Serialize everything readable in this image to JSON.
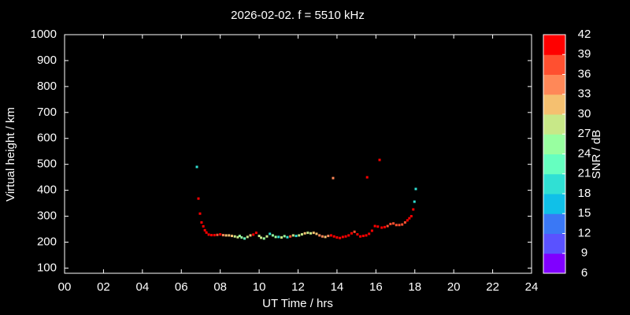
{
  "chart_data": {
    "type": "scatter",
    "title": "2026-02-02. f = 5510 kHz",
    "x_label": "UT Time / hrs",
    "y_label": "Virtual height / km",
    "xlim": [
      0,
      24
    ],
    "xticks": [
      {
        "value": 0,
        "label": "00"
      },
      {
        "value": 2,
        "label": "02"
      },
      {
        "value": 4,
        "label": "04"
      },
      {
        "value": 6,
        "label": "06"
      },
      {
        "value": 8,
        "label": "08"
      },
      {
        "value": 10,
        "label": "10"
      },
      {
        "value": 12,
        "label": "12"
      },
      {
        "value": 14,
        "label": "14"
      },
      {
        "value": 16,
        "label": "16"
      },
      {
        "value": 18,
        "label": "18"
      },
      {
        "value": 20,
        "label": "20"
      },
      {
        "value": 22,
        "label": "22"
      },
      {
        "value": 24,
        "label": "24"
      }
    ],
    "ylim": [
      80,
      1000
    ],
    "yticks": [
      100,
      200,
      300,
      400,
      500,
      600,
      700,
      800,
      900,
      1000
    ],
    "background": "#000000",
    "colorbar": {
      "label": "SNR / dB",
      "lim": [
        6,
        42
      ],
      "ticks": [
        6,
        9,
        12,
        15,
        18,
        21,
        24,
        27,
        30,
        33,
        36,
        39,
        42
      ],
      "colors": [
        "#8000ff",
        "#5a52ff",
        "#3a78f5",
        "#10c0e8",
        "#30e0d4",
        "#66ffc0",
        "#98ffa0",
        "#c8e888",
        "#f5c070",
        "#ff8858",
        "#ff5030",
        "#ff0000"
      ]
    },
    "x": [
      6.8,
      6.88,
      6.96,
      7.04,
      7.13,
      7.21,
      7.29,
      7.41,
      7.55,
      7.7,
      7.85,
      8.0,
      8.15,
      8.3,
      8.45,
      8.6,
      8.75,
      8.9,
      9.0,
      9.1,
      9.25,
      9.4,
      9.55,
      9.7,
      9.85,
      10.0,
      10.1,
      10.25,
      10.4,
      10.55,
      10.7,
      10.85,
      11.0,
      11.15,
      11.3,
      11.45,
      11.6,
      11.75,
      11.9,
      12.05,
      12.2,
      12.35,
      12.5,
      12.65,
      12.8,
      12.95,
      13.1,
      13.25,
      13.4,
      13.55,
      13.7,
      13.8,
      13.85,
      14.0,
      14.15,
      14.3,
      14.45,
      14.6,
      14.75,
      14.9,
      15.05,
      15.2,
      15.35,
      15.5,
      15.55,
      15.65,
      15.8,
      15.95,
      16.1,
      16.19,
      16.3,
      16.45,
      16.6,
      16.75,
      16.9,
      17.05,
      17.2,
      17.35,
      17.5,
      17.62,
      17.72,
      17.82,
      17.92,
      17.98,
      18.05
    ],
    "y": [
      490,
      368,
      310,
      276,
      261,
      246,
      237,
      229,
      227,
      227,
      228,
      230,
      227,
      226,
      226,
      224,
      222,
      219,
      224,
      218,
      214,
      220,
      226,
      229,
      236,
      224,
      217,
      214,
      222,
      232,
      226,
      220,
      220,
      218,
      223,
      219,
      222,
      226,
      224,
      226,
      230,
      234,
      236,
      234,
      236,
      232,
      226,
      222,
      220,
      224,
      226,
      447,
      222,
      218,
      216,
      220,
      222,
      226,
      234,
      240,
      230,
      222,
      224,
      226,
      450,
      232,
      244,
      262,
      260,
      517,
      256,
      258,
      262,
      270,
      272,
      266,
      266,
      268,
      276,
      284,
      292,
      300,
      326,
      356,
      405
    ],
    "snr": [
      19,
      39,
      40,
      41,
      40,
      40,
      40,
      40,
      40,
      39,
      38,
      40,
      33,
      30,
      31,
      30,
      29,
      27,
      26,
      24,
      22,
      27,
      30,
      39,
      40,
      27,
      28,
      26,
      29,
      20,
      25,
      26,
      20,
      28,
      24,
      18,
      38,
      27,
      20,
      28,
      27,
      30,
      29,
      28,
      31,
      31,
      33,
      34,
      32,
      35,
      39,
      33,
      40,
      40,
      41,
      40,
      39,
      39,
      40,
      38,
      41,
      40,
      40,
      40,
      40,
      40,
      39,
      40,
      40,
      40,
      40,
      39,
      38,
      38,
      36,
      37,
      37,
      38,
      38,
      40,
      40,
      39,
      39,
      20,
      19
    ]
  }
}
